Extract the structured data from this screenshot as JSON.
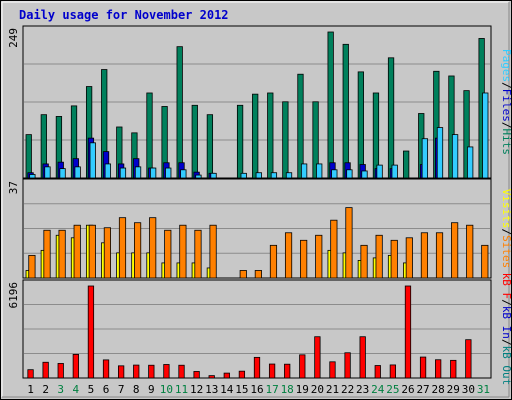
{
  "title": "Daily usage for November 2012",
  "colors": {
    "background": "#c8c8c8",
    "grid": "#8c8c8c",
    "hits": "#00805c",
    "files": "#0000cc",
    "pages": "#33ccff",
    "visits": "#ffff00",
    "sites": "#ff8000",
    "kb_in": "#0000cc",
    "kb_out": "#008080",
    "kb_f": "#ff0000",
    "weekend_day": "#008040",
    "weekday": "#000000"
  },
  "chart_data": [
    {
      "type": "bar",
      "panel": "hits-files-pages",
      "ymax_label": "249",
      "ylim": [
        0,
        249
      ],
      "right_label_parts": [
        "Pages",
        "/",
        "Files",
        "/",
        "Hits"
      ],
      "categories": [
        "1",
        "2",
        "3",
        "4",
        "5",
        "6",
        "7",
        "8",
        "9",
        "10",
        "11",
        "12",
        "13",
        "14",
        "15",
        "16",
        "17",
        "18",
        "19",
        "20",
        "21",
        "22",
        "23",
        "24",
        "25",
        "26",
        "27",
        "28",
        "29",
        "30",
        "31"
      ],
      "series": [
        {
          "name": "Hits",
          "values": [
            74,
            108,
            105,
            123,
            156,
            185,
            87,
            77,
            145,
            122,
            224,
            124,
            108,
            0,
            124,
            143,
            145,
            130,
            177,
            130,
            249,
            228,
            181,
            145,
            205,
            46,
            110,
            182,
            174,
            149,
            238
          ]
        },
        {
          "name": "Files",
          "values": [
            9,
            24,
            27,
            33,
            68,
            45,
            24,
            33,
            17,
            26,
            26,
            10,
            8,
            0,
            0,
            0,
            0,
            0,
            0,
            0,
            26,
            26,
            23,
            16,
            16,
            0,
            23,
            68,
            0,
            0,
            0
          ]
        },
        {
          "name": "Pages",
          "values": [
            6,
            19,
            16,
            19,
            60,
            24,
            17,
            19,
            17,
            17,
            14,
            5,
            8,
            0,
            8,
            9,
            9,
            9,
            24,
            24,
            14,
            14,
            12,
            22,
            22,
            0,
            67,
            86,
            74,
            53,
            145
          ]
        }
      ]
    },
    {
      "type": "bar",
      "panel": "visits-sites",
      "ymax_label": "37",
      "ylim": [
        0,
        37
      ],
      "right_label_parts": [
        "Visits",
        "/",
        "Sites"
      ],
      "categories": [
        "1",
        "2",
        "3",
        "4",
        "5",
        "6",
        "7",
        "8",
        "9",
        "10",
        "11",
        "12",
        "13",
        "14",
        "15",
        "16",
        "17",
        "18",
        "19",
        "20",
        "21",
        "22",
        "23",
        "24",
        "25",
        "26",
        "27",
        "28",
        "29",
        "30",
        "31"
      ],
      "series": [
        {
          "name": "Visits",
          "values": [
            3,
            11,
            17,
            16,
            21,
            14,
            10,
            10,
            10,
            6,
            6,
            6,
            4,
            0,
            0,
            0,
            0,
            0,
            0,
            0,
            11,
            10,
            7,
            8,
            9,
            6,
            0,
            0,
            0,
            0,
            0
          ]
        },
        {
          "name": "Sites",
          "values": [
            9,
            19,
            19,
            21,
            21,
            20,
            24,
            22,
            24,
            19,
            21,
            19,
            21,
            0,
            3,
            3,
            13,
            18,
            15,
            17,
            23,
            28,
            13,
            17,
            15,
            16,
            18,
            18,
            22,
            21,
            13
          ]
        }
      ]
    },
    {
      "type": "bar",
      "panel": "kb",
      "ymax_label": "6196",
      "ylim": [
        0,
        6196
      ],
      "right_label_parts": [
        "kB F",
        "/",
        "kB In",
        "/",
        "kB Out"
      ],
      "categories": [
        "1",
        "2",
        "3",
        "4",
        "5",
        "6",
        "7",
        "8",
        "9",
        "10",
        "11",
        "12",
        "13",
        "14",
        "15",
        "16",
        "17",
        "18",
        "19",
        "20",
        "21",
        "22",
        "23",
        "24",
        "25",
        "26",
        "27",
        "28",
        "29",
        "30",
        "31"
      ],
      "series": [
        {
          "name": "kB F",
          "values": [
            560,
            1060,
            980,
            1590,
            6196,
            1220,
            820,
            870,
            860,
            910,
            860,
            440,
            160,
            330,
            460,
            1390,
            940,
            930,
            1560,
            2780,
            1090,
            1700,
            2780,
            840,
            880,
            6196,
            1410,
            1230,
            1190,
            2580,
            0
          ]
        }
      ]
    }
  ],
  "x_axis": {
    "days": [
      {
        "label": "1",
        "weekend": false
      },
      {
        "label": "2",
        "weekend": false
      },
      {
        "label": "3",
        "weekend": true
      },
      {
        "label": "4",
        "weekend": true
      },
      {
        "label": "5",
        "weekend": false
      },
      {
        "label": "6",
        "weekend": false
      },
      {
        "label": "7",
        "weekend": false
      },
      {
        "label": "8",
        "weekend": false
      },
      {
        "label": "9",
        "weekend": false
      },
      {
        "label": "10",
        "weekend": true
      },
      {
        "label": "11",
        "weekend": true
      },
      {
        "label": "12",
        "weekend": false
      },
      {
        "label": "13",
        "weekend": false
      },
      {
        "label": "14",
        "weekend": false
      },
      {
        "label": "15",
        "weekend": false
      },
      {
        "label": "16",
        "weekend": false
      },
      {
        "label": "17",
        "weekend": true
      },
      {
        "label": "18",
        "weekend": true
      },
      {
        "label": "19",
        "weekend": false
      },
      {
        "label": "20",
        "weekend": false
      },
      {
        "label": "21",
        "weekend": false
      },
      {
        "label": "22",
        "weekend": false
      },
      {
        "label": "23",
        "weekend": false
      },
      {
        "label": "24",
        "weekend": true
      },
      {
        "label": "25",
        "weekend": true
      },
      {
        "label": "26",
        "weekend": false
      },
      {
        "label": "27",
        "weekend": false
      },
      {
        "label": "28",
        "weekend": false
      },
      {
        "label": "29",
        "weekend": false
      },
      {
        "label": "30",
        "weekend": false
      },
      {
        "label": "31",
        "weekend": true
      }
    ]
  }
}
